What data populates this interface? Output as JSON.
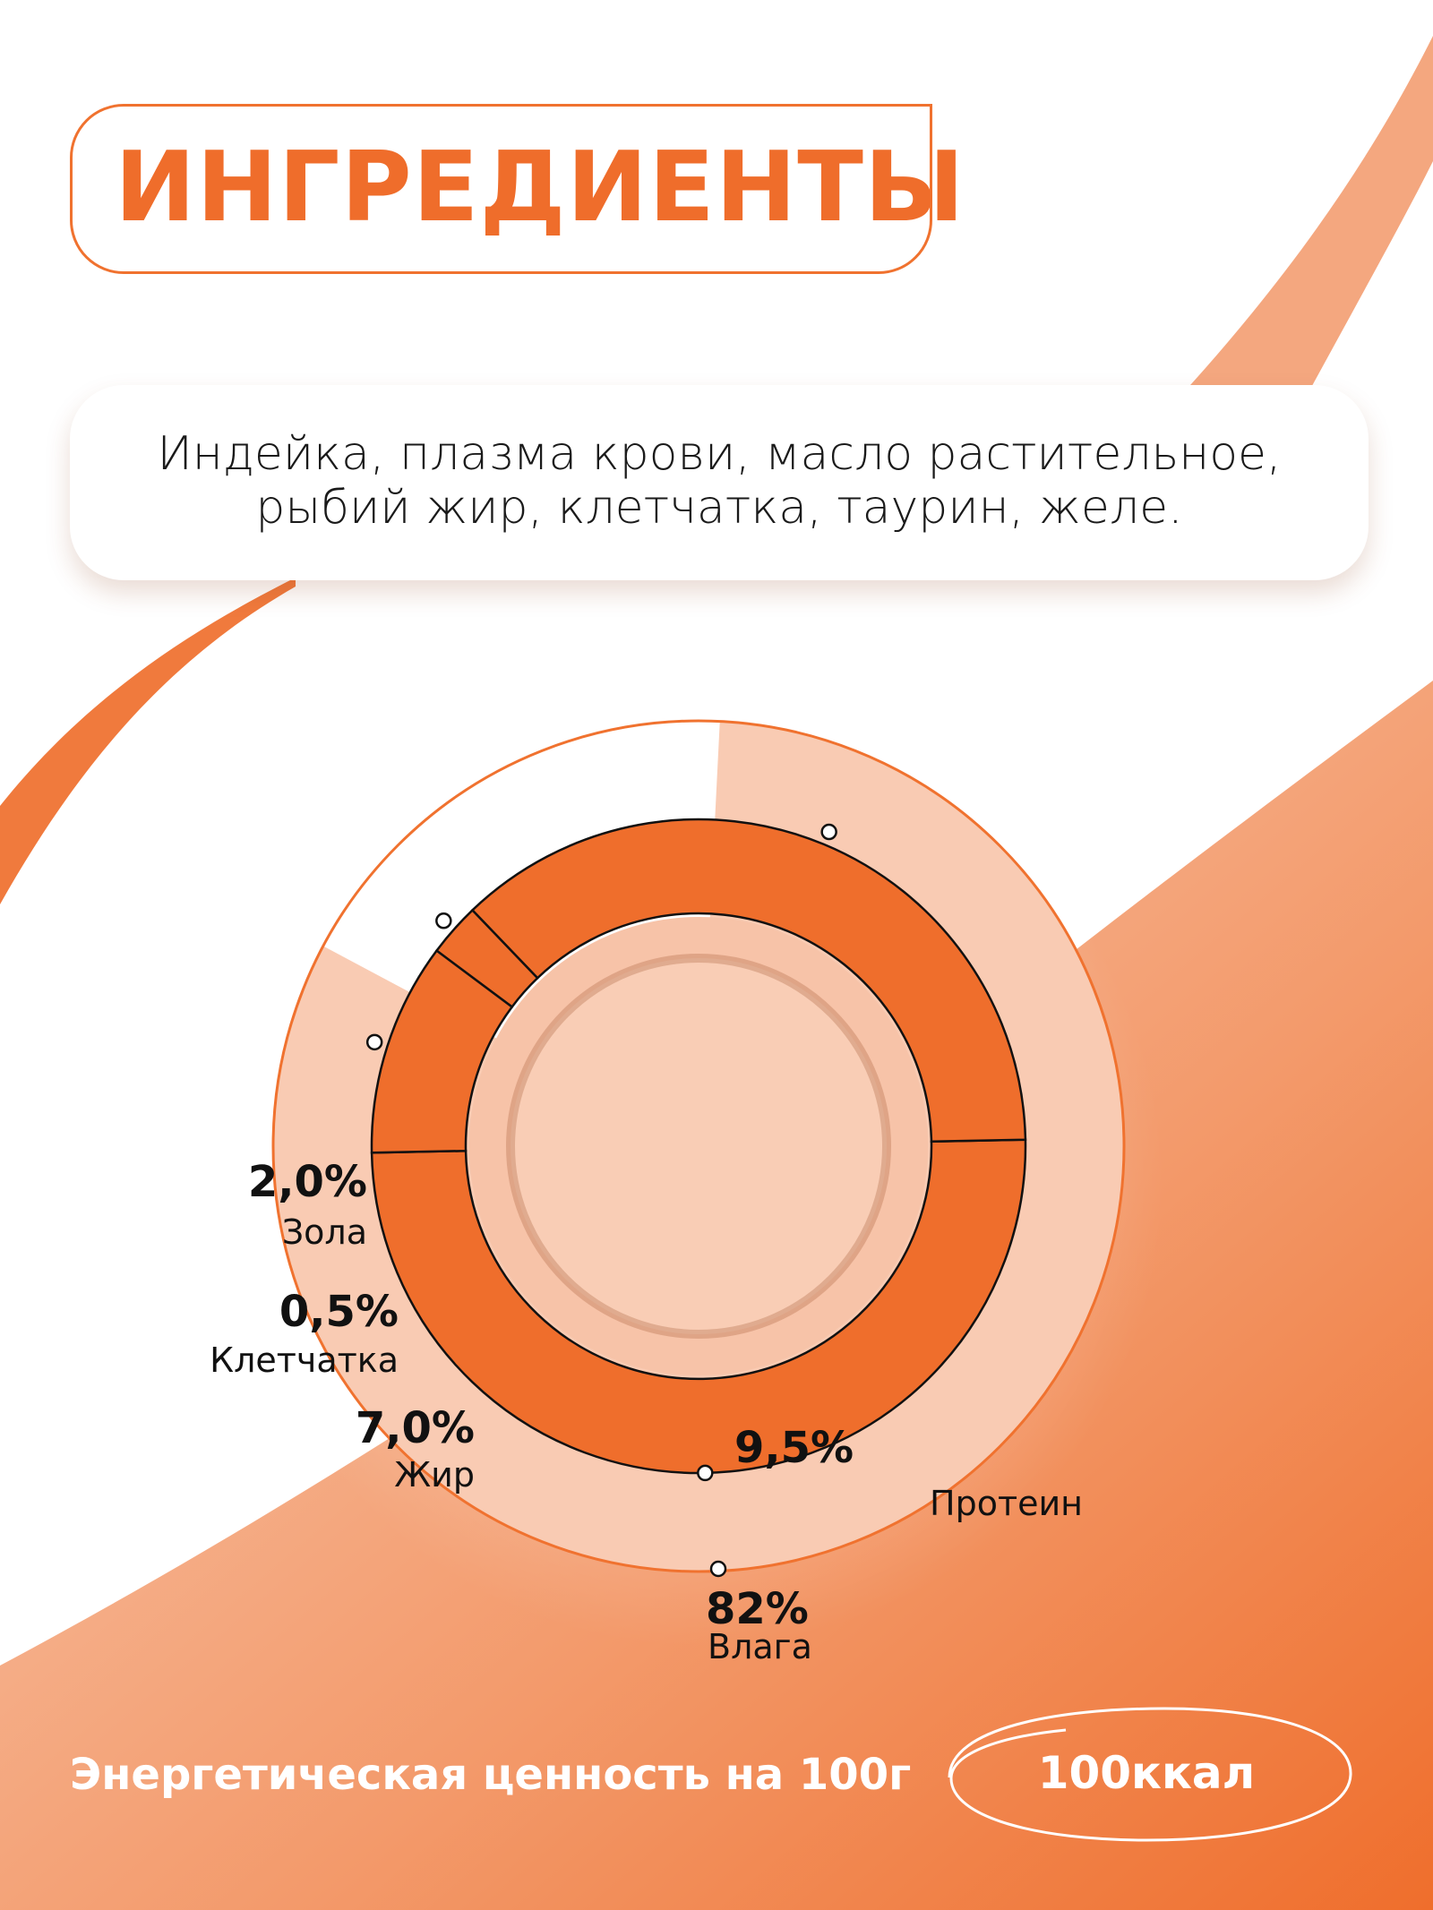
{
  "header": {
    "title": "ИНГРЕДИЕНТЫ"
  },
  "ingredients": {
    "line1": "Индейка, плазма крови, масло растительное,",
    "line2": "рыбий жир, клетчатка, таурин, желе."
  },
  "chart_data": {
    "type": "pie",
    "legend": "none",
    "outer": {
      "name": "Влага",
      "value_label": "82%",
      "value": 82
    },
    "slices": [
      {
        "name": "Протеин",
        "value_label": "9,5%",
        "value": 9.5
      },
      {
        "name": "Жир",
        "value_label": "7,0%",
        "value": 7.0
      },
      {
        "name": "Клетчатка",
        "value_label": "0,5%",
        "value": 0.5
      },
      {
        "name": "Зола",
        "value_label": "2,0%",
        "value": 2.0
      }
    ]
  },
  "energy": {
    "label": "Энергетическая ценность на 100г",
    "value": "100ккал"
  },
  "colors": {
    "accent": "#f0722f",
    "accent_light": "#f7b99a",
    "text": "#111111"
  }
}
